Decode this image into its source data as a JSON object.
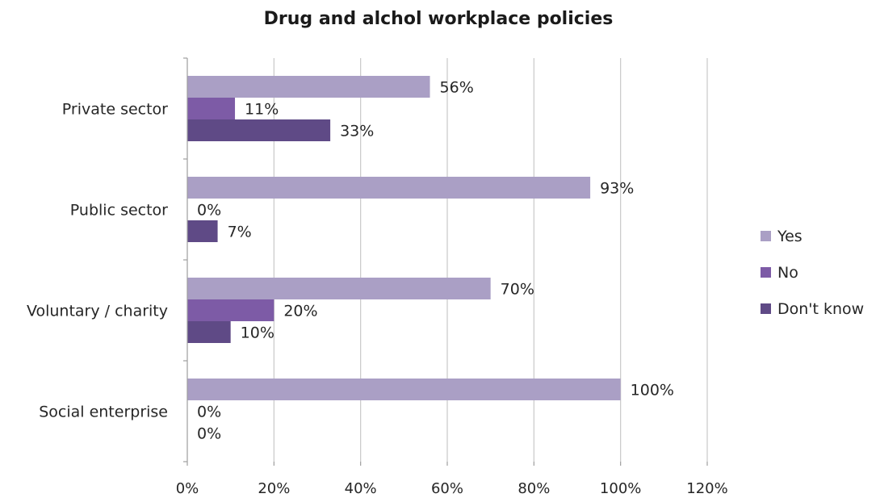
{
  "chart_data": {
    "type": "bar",
    "orientation": "horizontal",
    "title": "Drug and alchol workplace policies",
    "xlabel": "",
    "ylabel": "",
    "categories": [
      "Private sector",
      "Public sector",
      "Voluntary / charity",
      "Social enterprise"
    ],
    "series": [
      {
        "name": "Yes",
        "color": "#aa9fc5",
        "values": [
          56,
          93,
          70,
          100
        ],
        "labels": [
          "56%",
          "93%",
          "70%",
          "100%"
        ]
      },
      {
        "name": "No",
        "color": "#7d5ba6",
        "values": [
          11,
          0,
          20,
          0
        ],
        "labels": [
          "11%",
          "0%",
          "20%",
          "0%"
        ]
      },
      {
        "name": "Don't know",
        "color": "#5f4a86",
        "values": [
          33,
          7,
          10,
          0
        ],
        "labels": [
          "33%",
          "7%",
          "10%",
          "0%"
        ]
      }
    ],
    "xlim": [
      0,
      120
    ],
    "xticks": [
      0,
      20,
      40,
      60,
      80,
      100,
      120
    ],
    "xtick_labels": [
      "0%",
      "20%",
      "40%",
      "60%",
      "80%",
      "100%",
      "120%"
    ],
    "grid": true,
    "legend_position": "right"
  }
}
